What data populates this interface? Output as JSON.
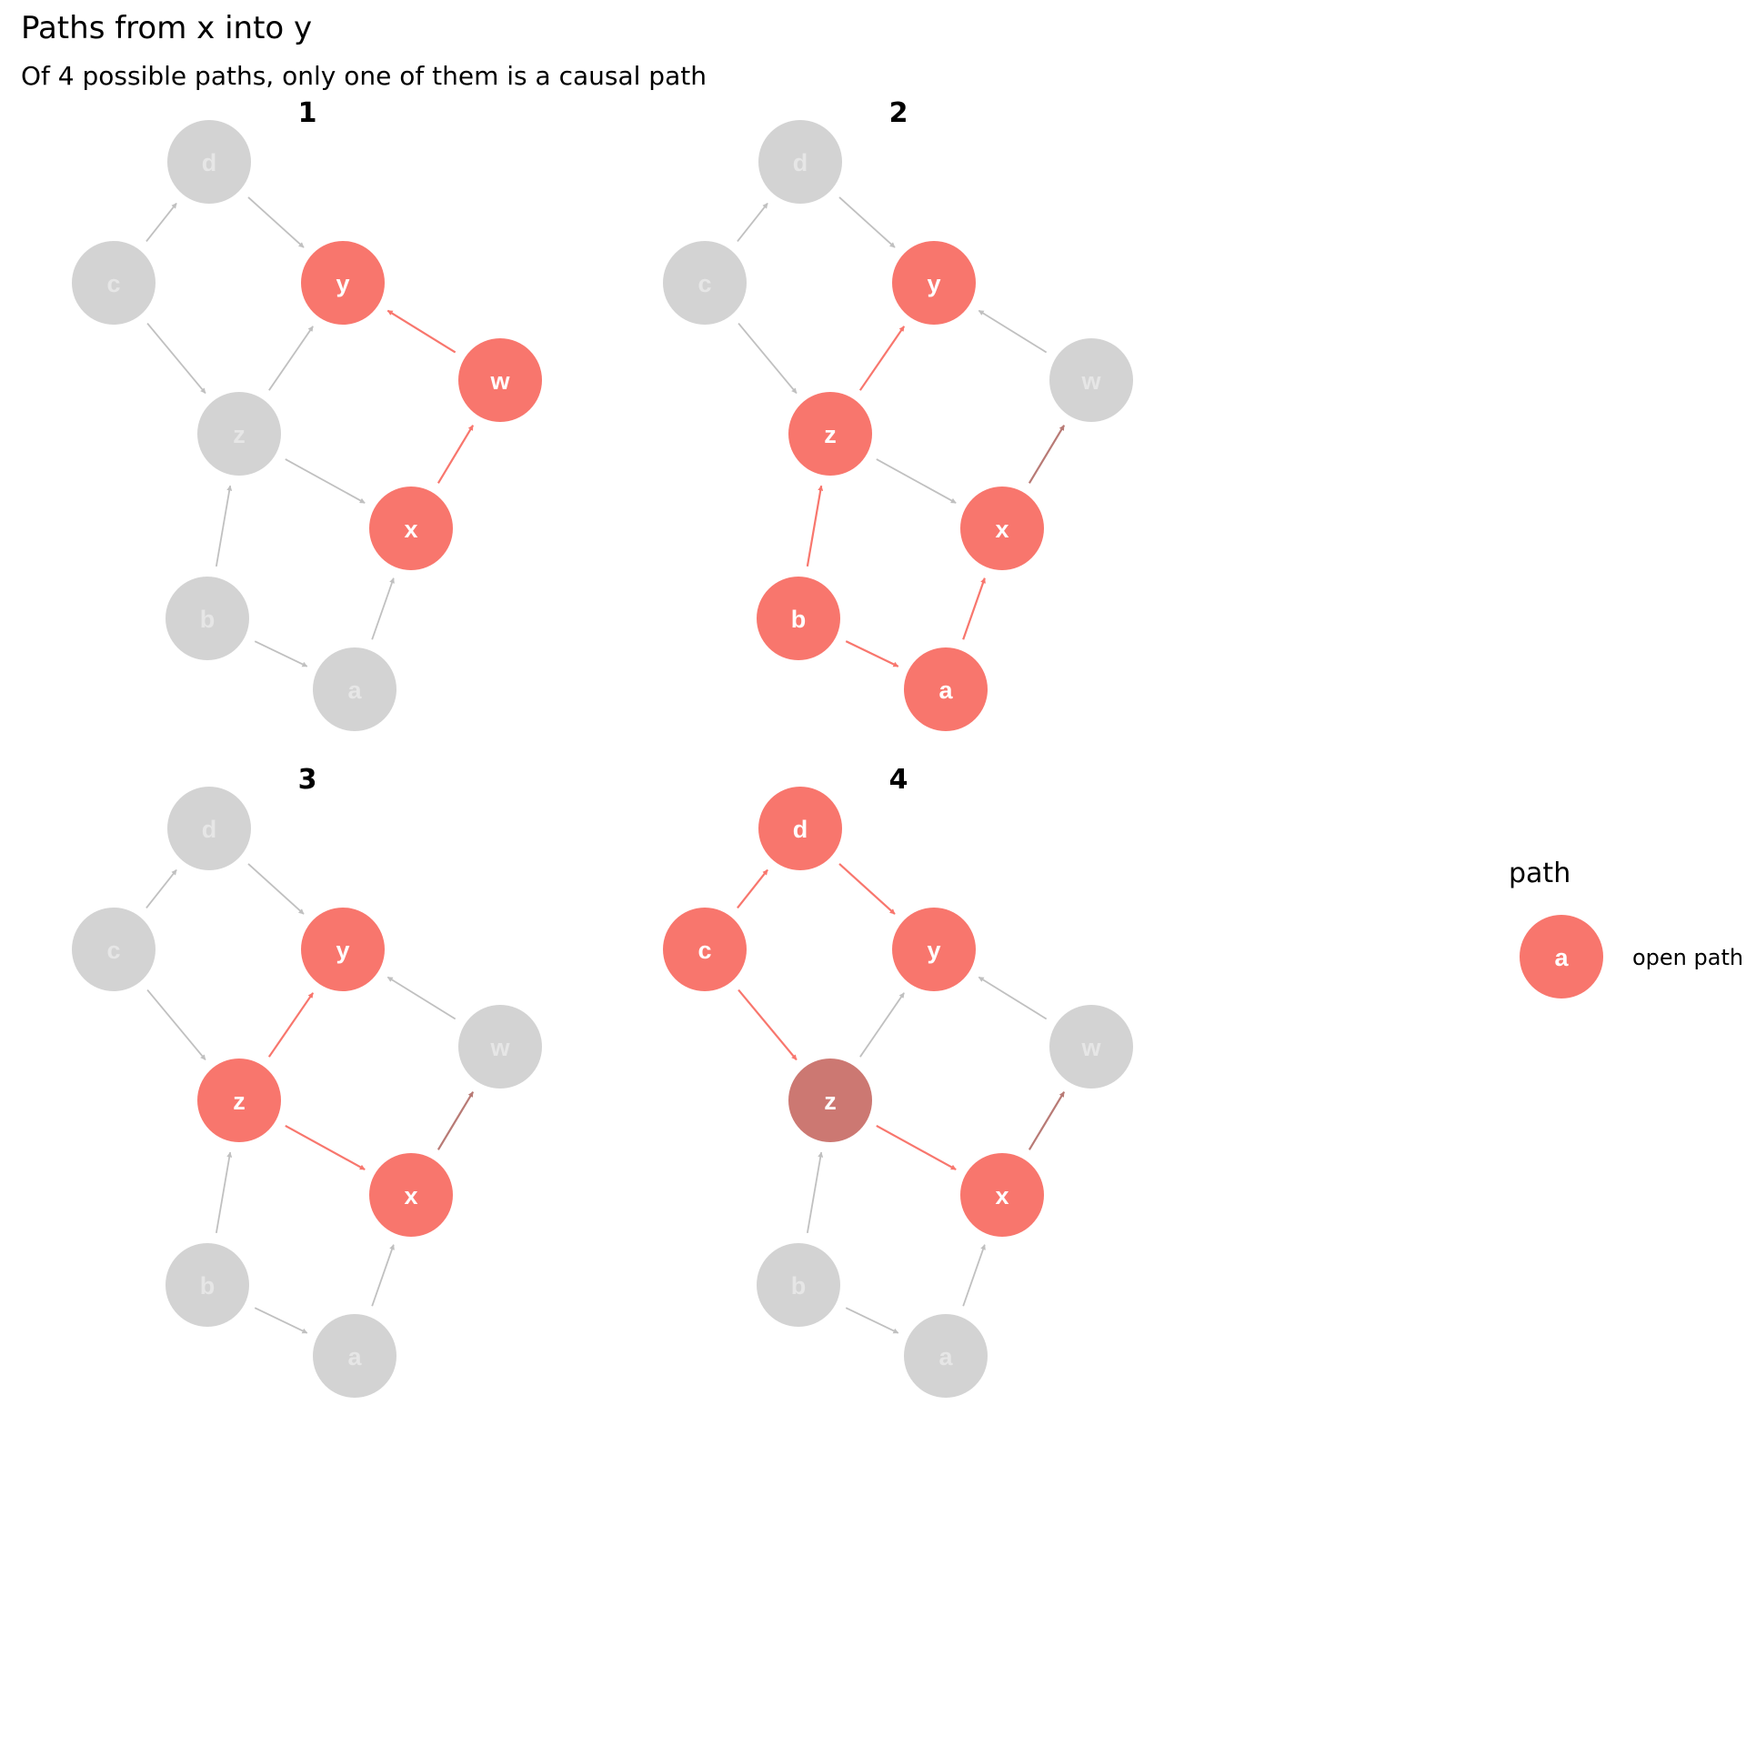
{
  "title": "Paths from x into y",
  "subtitle": "Of 4 possible paths, only one of them is a causal path",
  "colors": {
    "open_path": "#f8766d",
    "open_path_edge": "#f8766d",
    "adjusted_node": "#cc7872",
    "adjusted_edge": "#b87a75",
    "inactive_node": "#d3d3d3",
    "inactive_edge": "#c0c0c0",
    "inactive_label": "#e6e6e6",
    "active_label": "#ffffff"
  },
  "legend": {
    "title": "path",
    "key_label": "a",
    "entry": "open path"
  },
  "panels": [
    {
      "label": "1",
      "active_nodes": [
        "y",
        "w",
        "x"
      ],
      "adjusted_nodes": [],
      "active_edges": [
        [
          "x",
          "w"
        ],
        [
          "w",
          "y"
        ]
      ],
      "adjusted_edges": []
    },
    {
      "label": "2",
      "active_nodes": [
        "y",
        "z",
        "x",
        "b",
        "a"
      ],
      "adjusted_nodes": [],
      "active_edges": [
        [
          "z",
          "y"
        ],
        [
          "b",
          "z"
        ],
        [
          "b",
          "a"
        ],
        [
          "a",
          "x"
        ]
      ],
      "adjusted_edges": [
        [
          "x",
          "w"
        ]
      ]
    },
    {
      "label": "3",
      "active_nodes": [
        "y",
        "z",
        "x"
      ],
      "adjusted_nodes": [],
      "active_edges": [
        [
          "z",
          "y"
        ],
        [
          "z",
          "x"
        ]
      ],
      "adjusted_edges": [
        [
          "x",
          "w"
        ]
      ]
    },
    {
      "label": "4",
      "active_nodes": [
        "d",
        "c",
        "y",
        "x"
      ],
      "adjusted_nodes": [
        "z"
      ],
      "active_edges": [
        [
          "c",
          "d"
        ],
        [
          "d",
          "y"
        ],
        [
          "c",
          "z"
        ],
        [
          "z",
          "x"
        ]
      ],
      "adjusted_edges": [
        [
          "x",
          "w"
        ]
      ]
    }
  ],
  "diagram": {
    "nodes": [
      "d",
      "c",
      "y",
      "w",
      "z",
      "x",
      "b",
      "a"
    ],
    "edges": [
      [
        "c",
        "d"
      ],
      [
        "d",
        "y"
      ],
      [
        "c",
        "z"
      ],
      [
        "z",
        "y"
      ],
      [
        "w",
        "y"
      ],
      [
        "z",
        "x"
      ],
      [
        "x",
        "w"
      ],
      [
        "b",
        "z"
      ],
      [
        "b",
        "a"
      ],
      [
        "a",
        "x"
      ]
    ]
  }
}
